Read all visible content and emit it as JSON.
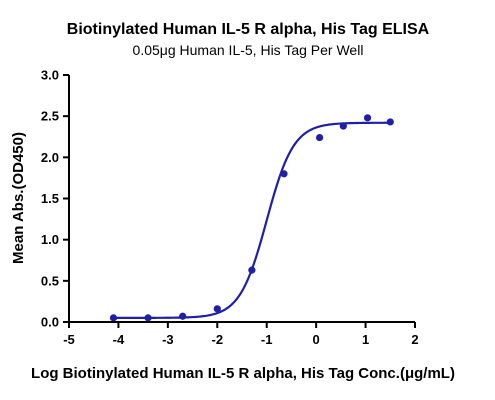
{
  "chart_data": {
    "type": "scatter",
    "title": "Biotinylated Human IL-5 R alpha, His Tag ELISA",
    "subtitle": "0.05μg Human IL-5, His Tag Per Well",
    "xlabel": "Log Biotinylated Human IL-5 R alpha, His Tag Conc.(μg/mL)",
    "ylabel": "Mean Abs.(OD450)",
    "xlim": [
      -5,
      2
    ],
    "ylim": [
      0,
      3.0
    ],
    "x_ticks": [
      "-5",
      "-4",
      "-3",
      "-2",
      "-1",
      "0",
      "1",
      "2"
    ],
    "y_ticks": [
      "0.0",
      "0.5",
      "1.0",
      "1.5",
      "2.0",
      "2.5",
      "3.0"
    ],
    "grid": false,
    "color": "#1f1fa8",
    "series": [
      {
        "x": [
          -4.1,
          -3.4,
          -2.7,
          -2.0,
          -1.3,
          -0.65,
          0.07,
          0.55,
          1.04,
          1.5
        ],
        "y": [
          0.05,
          0.05,
          0.07,
          0.16,
          0.63,
          1.8,
          2.24,
          2.38,
          2.48,
          2.43
        ]
      }
    ],
    "fit_curve": {
      "model": "4PL",
      "bottom": 0.05,
      "top": 2.42,
      "log_ec50": -1.0,
      "hill_slope": 1.6
    }
  }
}
